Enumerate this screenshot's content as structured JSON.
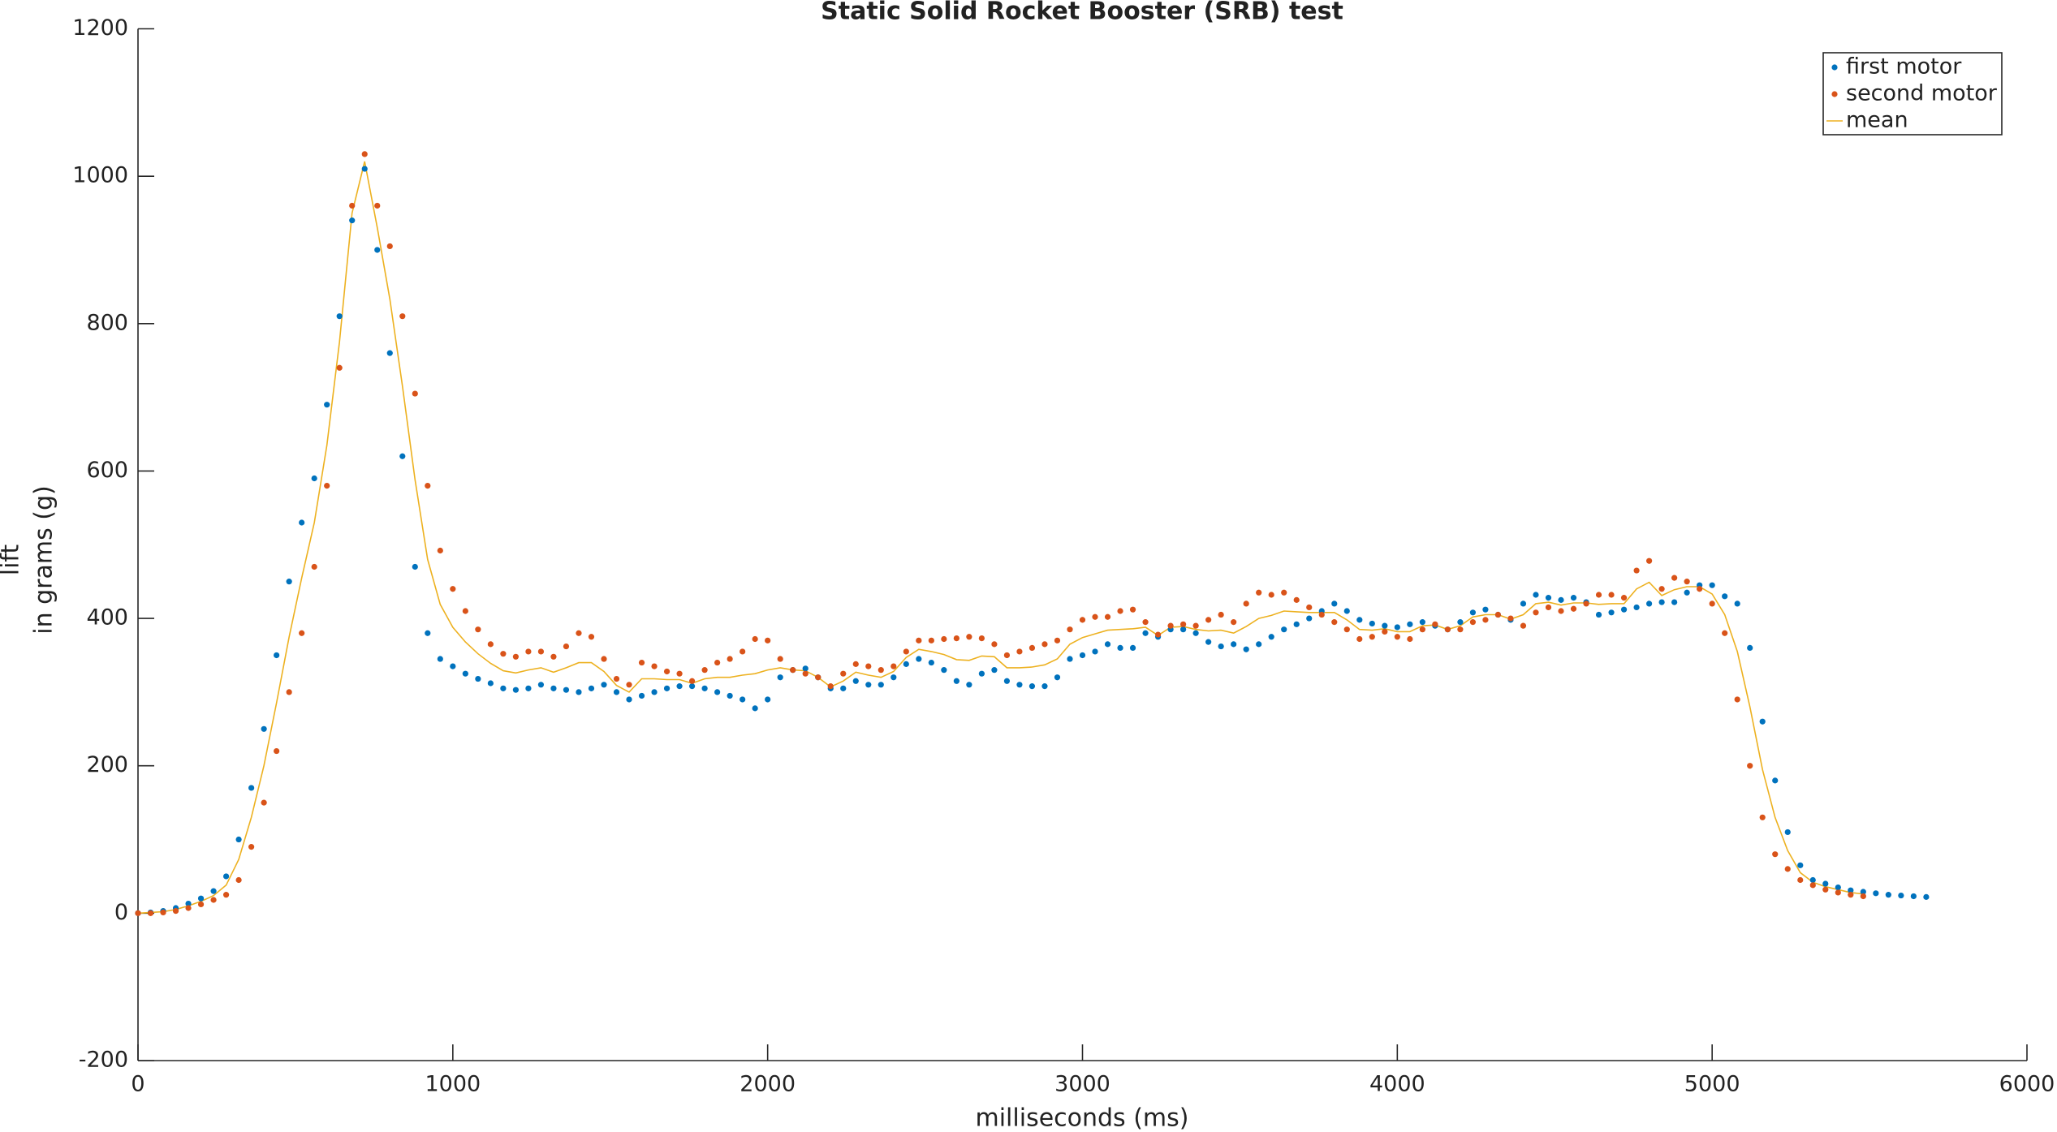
{
  "chart_data": {
    "type": "scatter",
    "title": "Static Solid Rocket Booster (SRB) test",
    "xlabel": "milliseconds (ms)",
    "ylabel": [
      "lift",
      "in grams (g)"
    ],
    "xlim": [
      0,
      6000
    ],
    "xticks": [
      0,
      1000,
      2000,
      3000,
      4000,
      5000,
      6000
    ],
    "ylim": [
      -200,
      1200
    ],
    "yticks": [
      -200,
      0,
      200,
      400,
      600,
      800,
      1000,
      1200
    ],
    "grid": false,
    "legend": "northeast",
    "x": [
      0,
      40,
      80,
      120,
      160,
      200,
      240,
      280,
      320,
      360,
      400,
      440,
      480,
      520,
      560,
      600,
      640,
      680,
      720,
      760,
      800,
      840,
      880,
      920,
      960,
      1000,
      1040,
      1080,
      1120,
      1160,
      1200,
      1240,
      1280,
      1320,
      1360,
      1400,
      1440,
      1480,
      1520,
      1560,
      1600,
      1640,
      1680,
      1720,
      1760,
      1800,
      1840,
      1880,
      1920,
      1960,
      2000,
      2040,
      2080,
      2120,
      2160,
      2200,
      2240,
      2280,
      2320,
      2360,
      2400,
      2440,
      2480,
      2520,
      2560,
      2600,
      2640,
      2680,
      2720,
      2760,
      2800,
      2840,
      2880,
      2920,
      2960,
      3000,
      3040,
      3080,
      3120,
      3160,
      3200,
      3240,
      3280,
      3320,
      3360,
      3400,
      3440,
      3480,
      3520,
      3560,
      3600,
      3640,
      3680,
      3720,
      3760,
      3800,
      3840,
      3880,
      3920,
      3960,
      4000,
      4040,
      4080,
      4120,
      4160,
      4200,
      4240,
      4280,
      4320,
      4360,
      4400,
      4440,
      4480,
      4520,
      4560,
      4600,
      4640,
      4680,
      4720,
      4760,
      4800,
      4840,
      4880,
      4920,
      4960,
      5000,
      5040,
      5080,
      5120,
      5160,
      5200,
      5240,
      5280,
      5320,
      5360,
      5400,
      5440,
      5480,
      5520,
      5560,
      5600,
      5640,
      5680
    ],
    "series": [
      {
        "name": "first motor",
        "type": "scatter",
        "color": "#0072bd",
        "values": [
          0,
          1,
          3,
          7,
          13,
          20,
          30,
          50,
          100,
          170,
          250,
          350,
          450,
          530,
          590,
          690,
          810,
          940,
          1010,
          900,
          760,
          620,
          470,
          380,
          345,
          335,
          325,
          318,
          312,
          305,
          303,
          305,
          310,
          305,
          303,
          300,
          305,
          310,
          300,
          290,
          295,
          300,
          305,
          308,
          308,
          305,
          300,
          295,
          290,
          278,
          290,
          320,
          330,
          332,
          320,
          305,
          305,
          315,
          310,
          310,
          320,
          338,
          345,
          340,
          330,
          315,
          310,
          325,
          330,
          315,
          310,
          308,
          308,
          320,
          345,
          350,
          355,
          365,
          360,
          360,
          380,
          375,
          385,
          385,
          380,
          368,
          362,
          365,
          358,
          365,
          375,
          385,
          392,
          400,
          410,
          420,
          410,
          398,
          393,
          390,
          388,
          392,
          395,
          390,
          385,
          395,
          408,
          412,
          405,
          398,
          420,
          432,
          428,
          425,
          428,
          422,
          405,
          408,
          412,
          415,
          420,
          422,
          422,
          435,
          445,
          445,
          430,
          420,
          360,
          260,
          180,
          110,
          65,
          45,
          40,
          35,
          31,
          29,
          27,
          25,
          24,
          23,
          22
        ]
      },
      {
        "name": "second motor",
        "type": "scatter",
        "color": "#d95319",
        "values": [
          0,
          0,
          1,
          3,
          7,
          12,
          18,
          25,
          45,
          90,
          150,
          220,
          300,
          380,
          470,
          580,
          740,
          960,
          1030,
          960,
          905,
          810,
          705,
          580,
          492,
          440,
          410,
          385,
          365,
          352,
          348,
          355,
          355,
          348,
          362,
          380,
          375,
          345,
          318,
          310,
          340,
          335,
          328,
          325,
          315,
          330,
          340,
          345,
          355,
          372,
          370,
          345,
          330,
          325,
          320,
          308,
          325,
          338,
          335,
          330,
          335,
          355,
          370,
          370,
          372,
          373,
          375,
          373,
          365,
          350,
          355,
          360,
          365,
          370,
          385,
          398,
          402,
          402,
          410,
          412,
          395,
          378,
          390,
          392,
          390,
          398,
          405,
          395,
          420,
          435,
          432,
          435,
          425,
          415,
          405,
          395,
          385,
          372,
          375,
          382,
          375,
          372,
          385,
          392,
          385,
          385,
          395,
          398,
          405,
          400,
          390,
          408,
          415,
          410,
          413,
          420,
          432,
          432,
          428,
          465,
          478,
          440,
          455,
          450,
          440,
          420,
          380,
          290,
          200,
          130,
          80,
          60,
          45,
          38,
          32,
          28,
          25,
          23,
          null,
          null,
          null,
          null,
          null
        ]
      },
      {
        "name": "mean",
        "type": "line",
        "color": "#edb120",
        "values": [
          0,
          1,
          2,
          5,
          10,
          16,
          24,
          38,
          73,
          130,
          200,
          285,
          375,
          455,
          530,
          635,
          775,
          950,
          1020,
          930,
          833,
          715,
          588,
          480,
          419,
          388,
          368,
          352,
          339,
          329,
          326,
          330,
          333,
          327,
          333,
          340,
          340,
          328,
          309,
          300,
          318,
          318,
          317,
          317,
          312,
          318,
          320,
          320,
          323,
          325,
          330,
          333,
          330,
          329,
          320,
          307,
          315,
          327,
          323,
          320,
          328,
          347,
          358,
          355,
          351,
          344,
          343,
          349,
          348,
          333,
          333,
          334,
          337,
          345,
          365,
          374,
          379,
          384,
          385,
          386,
          388,
          377,
          388,
          389,
          385,
          383,
          384,
          380,
          389,
          400,
          404,
          410,
          409,
          408,
          408,
          408,
          398,
          385,
          384,
          386,
          382,
          382,
          390,
          391,
          385,
          390,
          402,
          405,
          405,
          399,
          405,
          420,
          422,
          418,
          421,
          421,
          419,
          420,
          420,
          440,
          449,
          431,
          439,
          443,
          443,
          433,
          405,
          355,
          280,
          195,
          130,
          85,
          55,
          42,
          36,
          32,
          28,
          26,
          null,
          null,
          null,
          null,
          null
        ]
      }
    ]
  }
}
